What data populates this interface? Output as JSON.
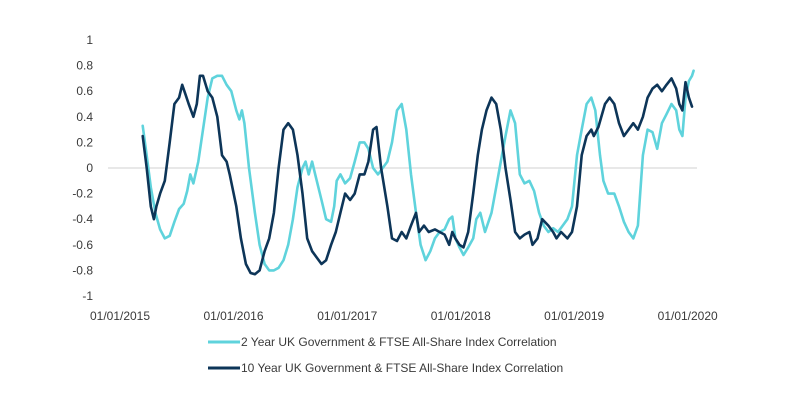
{
  "chart_data": {
    "type": "line",
    "title": "",
    "xlabel": "",
    "ylabel": "",
    "xlim": [
      "2015-01-01",
      "2020-01-31"
    ],
    "ylim": [
      -1,
      1
    ],
    "x_ticks": [
      "01/01/2015",
      "01/01/2016",
      "01/01/2017",
      "01/01/2018",
      "01/01/2019",
      "01/01/2020"
    ],
    "y_ticks": [
      1,
      0.8,
      0.6,
      0.4,
      0.2,
      0,
      -0.2,
      -0.4,
      -0.6,
      -0.8,
      -1
    ],
    "grid": false,
    "zero_line": true,
    "legend_position": "bottom",
    "series": [
      {
        "name": "2 Year UK Government & FTSE All-Share Index Correlation",
        "color": "#5fd3dc",
        "points": [
          [
            "2015-03-15",
            0.33
          ],
          [
            "2015-03-25",
            0.15
          ],
          [
            "2015-04-10",
            -0.15
          ],
          [
            "2015-04-25",
            -0.35
          ],
          [
            "2015-05-10",
            -0.48
          ],
          [
            "2015-05-25",
            -0.55
          ],
          [
            "2015-06-10",
            -0.53
          ],
          [
            "2015-06-25",
            -0.42
          ],
          [
            "2015-07-10",
            -0.32
          ],
          [
            "2015-07-25",
            -0.28
          ],
          [
            "2015-08-05",
            -0.18
          ],
          [
            "2015-08-15",
            -0.05
          ],
          [
            "2015-08-25",
            -0.12
          ],
          [
            "2015-09-10",
            0.05
          ],
          [
            "2015-09-25",
            0.3
          ],
          [
            "2015-10-10",
            0.55
          ],
          [
            "2015-10-25",
            0.7
          ],
          [
            "2015-11-10",
            0.72
          ],
          [
            "2015-11-25",
            0.72
          ],
          [
            "2015-12-10",
            0.65
          ],
          [
            "2015-12-25",
            0.6
          ],
          [
            "2016-01-10",
            0.45
          ],
          [
            "2016-01-20",
            0.38
          ],
          [
            "2016-01-28",
            0.45
          ],
          [
            "2016-02-05",
            0.35
          ],
          [
            "2016-02-20",
            0.0
          ],
          [
            "2016-03-10",
            -0.35
          ],
          [
            "2016-03-25",
            -0.6
          ],
          [
            "2016-04-10",
            -0.75
          ],
          [
            "2016-04-25",
            -0.8
          ],
          [
            "2016-05-10",
            -0.8
          ],
          [
            "2016-05-25",
            -0.78
          ],
          [
            "2016-06-10",
            -0.72
          ],
          [
            "2016-06-25",
            -0.6
          ],
          [
            "2016-07-10",
            -0.4
          ],
          [
            "2016-07-25",
            -0.15
          ],
          [
            "2016-08-10",
            0.0
          ],
          [
            "2016-08-20",
            0.05
          ],
          [
            "2016-08-30",
            -0.05
          ],
          [
            "2016-09-10",
            0.05
          ],
          [
            "2016-09-20",
            -0.05
          ],
          [
            "2016-10-10",
            -0.25
          ],
          [
            "2016-10-25",
            -0.4
          ],
          [
            "2016-11-10",
            -0.42
          ],
          [
            "2016-11-20",
            -0.3
          ],
          [
            "2016-11-28",
            -0.1
          ],
          [
            "2016-12-10",
            -0.05
          ],
          [
            "2016-12-25",
            -0.12
          ],
          [
            "2017-01-10",
            -0.08
          ],
          [
            "2017-01-25",
            0.05
          ],
          [
            "2017-02-10",
            0.2
          ],
          [
            "2017-02-25",
            0.2
          ],
          [
            "2017-03-10",
            0.15
          ],
          [
            "2017-03-25",
            0.0
          ],
          [
            "2017-04-10",
            -0.05
          ],
          [
            "2017-04-25",
            0.0
          ],
          [
            "2017-05-10",
            0.05
          ],
          [
            "2017-05-25",
            0.2
          ],
          [
            "2017-06-10",
            0.45
          ],
          [
            "2017-06-25",
            0.5
          ],
          [
            "2017-07-10",
            0.3
          ],
          [
            "2017-07-25",
            -0.05
          ],
          [
            "2017-08-10",
            -0.35
          ],
          [
            "2017-08-25",
            -0.6
          ],
          [
            "2017-09-10",
            -0.72
          ],
          [
            "2017-09-25",
            -0.65
          ],
          [
            "2017-10-10",
            -0.55
          ],
          [
            "2017-10-25",
            -0.5
          ],
          [
            "2017-11-10",
            -0.48
          ],
          [
            "2017-11-25",
            -0.4
          ],
          [
            "2017-12-05",
            -0.38
          ],
          [
            "2017-12-15",
            -0.55
          ],
          [
            "2017-12-28",
            -0.62
          ],
          [
            "2018-01-10",
            -0.68
          ],
          [
            "2018-01-25",
            -0.62
          ],
          [
            "2018-02-10",
            -0.55
          ],
          [
            "2018-02-20",
            -0.4
          ],
          [
            "2018-03-05",
            -0.35
          ],
          [
            "2018-03-20",
            -0.5
          ],
          [
            "2018-04-10",
            -0.35
          ],
          [
            "2018-04-25",
            -0.15
          ],
          [
            "2018-05-10",
            0.05
          ],
          [
            "2018-05-25",
            0.25
          ],
          [
            "2018-06-10",
            0.45
          ],
          [
            "2018-06-25",
            0.35
          ],
          [
            "2018-07-10",
            -0.05
          ],
          [
            "2018-07-25",
            -0.12
          ],
          [
            "2018-08-10",
            -0.1
          ],
          [
            "2018-08-25",
            -0.18
          ],
          [
            "2018-09-10",
            -0.35
          ],
          [
            "2018-09-25",
            -0.45
          ],
          [
            "2018-10-10",
            -0.5
          ],
          [
            "2018-10-25",
            -0.47
          ],
          [
            "2018-11-10",
            -0.5
          ],
          [
            "2018-11-25",
            -0.45
          ],
          [
            "2018-12-10",
            -0.4
          ],
          [
            "2018-12-25",
            -0.3
          ],
          [
            "2019-01-10",
            0.1
          ],
          [
            "2019-01-25",
            0.3
          ],
          [
            "2019-02-10",
            0.5
          ],
          [
            "2019-02-25",
            0.55
          ],
          [
            "2019-03-10",
            0.45
          ],
          [
            "2019-03-25",
            0.1
          ],
          [
            "2019-04-05",
            -0.1
          ],
          [
            "2019-04-20",
            -0.2
          ],
          [
            "2019-05-10",
            -0.2
          ],
          [
            "2019-05-25",
            -0.3
          ],
          [
            "2019-06-10",
            -0.42
          ],
          [
            "2019-06-25",
            -0.5
          ],
          [
            "2019-07-10",
            -0.55
          ],
          [
            "2019-07-25",
            -0.45
          ],
          [
            "2019-08-10",
            0.1
          ],
          [
            "2019-08-25",
            0.3
          ],
          [
            "2019-09-10",
            0.28
          ],
          [
            "2019-09-25",
            0.15
          ],
          [
            "2019-10-10",
            0.35
          ],
          [
            "2019-10-25",
            0.42
          ],
          [
            "2019-11-10",
            0.5
          ],
          [
            "2019-11-25",
            0.45
          ],
          [
            "2019-12-05",
            0.3
          ],
          [
            "2019-12-15",
            0.25
          ],
          [
            "2019-12-25",
            0.55
          ],
          [
            "2020-01-05",
            0.68
          ],
          [
            "2020-01-15",
            0.72
          ],
          [
            "2020-01-20",
            0.76
          ]
        ]
      },
      {
        "name": "10 Year UK Government & FTSE All-Share Index Correlation",
        "color": "#0d3558",
        "points": [
          [
            "2015-03-15",
            0.25
          ],
          [
            "2015-03-28",
            0.0
          ],
          [
            "2015-04-10",
            -0.3
          ],
          [
            "2015-04-20",
            -0.4
          ],
          [
            "2015-04-28",
            -0.3
          ],
          [
            "2015-05-10",
            -0.2
          ],
          [
            "2015-05-25",
            -0.1
          ],
          [
            "2015-06-10",
            0.2
          ],
          [
            "2015-06-25",
            0.5
          ],
          [
            "2015-07-10",
            0.55
          ],
          [
            "2015-07-20",
            0.65
          ],
          [
            "2015-07-30",
            0.58
          ],
          [
            "2015-08-10",
            0.5
          ],
          [
            "2015-08-25",
            0.4
          ],
          [
            "2015-09-05",
            0.5
          ],
          [
            "2015-09-15",
            0.72
          ],
          [
            "2015-09-25",
            0.72
          ],
          [
            "2015-10-10",
            0.6
          ],
          [
            "2015-10-25",
            0.55
          ],
          [
            "2015-11-10",
            0.4
          ],
          [
            "2015-11-25",
            0.1
          ],
          [
            "2015-12-10",
            0.05
          ],
          [
            "2015-12-20",
            -0.05
          ],
          [
            "2016-01-10",
            -0.3
          ],
          [
            "2016-01-25",
            -0.55
          ],
          [
            "2016-02-10",
            -0.75
          ],
          [
            "2016-02-25",
            -0.82
          ],
          [
            "2016-03-10",
            -0.83
          ],
          [
            "2016-03-25",
            -0.8
          ],
          [
            "2016-04-10",
            -0.65
          ],
          [
            "2016-04-25",
            -0.55
          ],
          [
            "2016-05-10",
            -0.35
          ],
          [
            "2016-05-25",
            0.0
          ],
          [
            "2016-06-10",
            0.3
          ],
          [
            "2016-06-25",
            0.35
          ],
          [
            "2016-07-10",
            0.3
          ],
          [
            "2016-07-25",
            0.1
          ],
          [
            "2016-08-10",
            -0.2
          ],
          [
            "2016-08-25",
            -0.55
          ],
          [
            "2016-09-10",
            -0.65
          ],
          [
            "2016-09-25",
            -0.7
          ],
          [
            "2016-10-10",
            -0.75
          ],
          [
            "2016-10-25",
            -0.72
          ],
          [
            "2016-11-10",
            -0.6
          ],
          [
            "2016-11-25",
            -0.5
          ],
          [
            "2016-12-10",
            -0.35
          ],
          [
            "2016-12-25",
            -0.2
          ],
          [
            "2017-01-10",
            -0.25
          ],
          [
            "2017-01-25",
            -0.2
          ],
          [
            "2017-02-10",
            -0.05
          ],
          [
            "2017-02-25",
            -0.05
          ],
          [
            "2017-03-10",
            0.05
          ],
          [
            "2017-03-25",
            0.3
          ],
          [
            "2017-04-05",
            0.32
          ],
          [
            "2017-04-20",
            0.0
          ],
          [
            "2017-05-10",
            -0.3
          ],
          [
            "2017-05-25",
            -0.55
          ],
          [
            "2017-06-10",
            -0.57
          ],
          [
            "2017-06-25",
            -0.5
          ],
          [
            "2017-07-10",
            -0.55
          ],
          [
            "2017-07-25",
            -0.45
          ],
          [
            "2017-08-10",
            -0.35
          ],
          [
            "2017-08-20",
            -0.5
          ],
          [
            "2017-09-05",
            -0.45
          ],
          [
            "2017-09-20",
            -0.5
          ],
          [
            "2017-10-10",
            -0.48
          ],
          [
            "2017-10-25",
            -0.5
          ],
          [
            "2017-11-10",
            -0.52
          ],
          [
            "2017-11-25",
            -0.6
          ],
          [
            "2017-12-05",
            -0.5
          ],
          [
            "2017-12-15",
            -0.55
          ],
          [
            "2017-12-28",
            -0.6
          ],
          [
            "2018-01-10",
            -0.62
          ],
          [
            "2018-01-25",
            -0.5
          ],
          [
            "2018-02-10",
            -0.2
          ],
          [
            "2018-02-25",
            0.1
          ],
          [
            "2018-03-10",
            0.3
          ],
          [
            "2018-03-25",
            0.45
          ],
          [
            "2018-04-10",
            0.55
          ],
          [
            "2018-04-25",
            0.5
          ],
          [
            "2018-05-10",
            0.3
          ],
          [
            "2018-05-25",
            0.0
          ],
          [
            "2018-06-10",
            -0.25
          ],
          [
            "2018-06-25",
            -0.5
          ],
          [
            "2018-07-10",
            -0.55
          ],
          [
            "2018-07-25",
            -0.52
          ],
          [
            "2018-08-10",
            -0.5
          ],
          [
            "2018-08-20",
            -0.6
          ],
          [
            "2018-09-05",
            -0.55
          ],
          [
            "2018-09-20",
            -0.4
          ],
          [
            "2018-10-10",
            -0.45
          ],
          [
            "2018-10-25",
            -0.5
          ],
          [
            "2018-11-05",
            -0.55
          ],
          [
            "2018-11-20",
            -0.5
          ],
          [
            "2018-12-10",
            -0.55
          ],
          [
            "2018-12-25",
            -0.5
          ],
          [
            "2019-01-10",
            -0.3
          ],
          [
            "2019-01-25",
            0.1
          ],
          [
            "2019-02-10",
            0.25
          ],
          [
            "2019-02-25",
            0.3
          ],
          [
            "2019-03-05",
            0.25
          ],
          [
            "2019-03-20",
            0.32
          ],
          [
            "2019-04-10",
            0.5
          ],
          [
            "2019-04-25",
            0.55
          ],
          [
            "2019-05-10",
            0.5
          ],
          [
            "2019-05-25",
            0.35
          ],
          [
            "2019-06-10",
            0.25
          ],
          [
            "2019-06-25",
            0.3
          ],
          [
            "2019-07-10",
            0.35
          ],
          [
            "2019-07-25",
            0.3
          ],
          [
            "2019-08-10",
            0.4
          ],
          [
            "2019-08-25",
            0.55
          ],
          [
            "2019-09-10",
            0.62
          ],
          [
            "2019-09-25",
            0.65
          ],
          [
            "2019-10-10",
            0.6
          ],
          [
            "2019-10-25",
            0.65
          ],
          [
            "2019-11-10",
            0.7
          ],
          [
            "2019-11-25",
            0.62
          ],
          [
            "2019-12-05",
            0.5
          ],
          [
            "2019-12-15",
            0.45
          ],
          [
            "2019-12-25",
            0.67
          ],
          [
            "2020-01-05",
            0.55
          ],
          [
            "2020-01-15",
            0.48
          ]
        ]
      }
    ]
  }
}
